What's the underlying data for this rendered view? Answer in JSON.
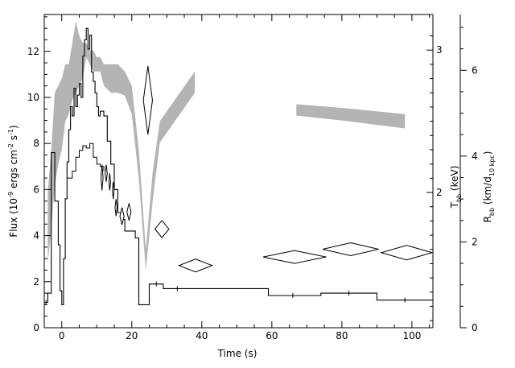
{
  "chart_data": {
    "type": "line",
    "xlabel": "Time (s)",
    "x_ticks": [
      0,
      20,
      40,
      60,
      80,
      100
    ],
    "xlim": [
      -5,
      106
    ],
    "axes": {
      "left": {
        "label_parts": [
          "Flux (10",
          "-9",
          " ergs cm",
          "-2",
          " s",
          "-1",
          ")"
        ],
        "ticks": [
          0,
          2,
          4,
          6,
          8,
          10,
          12
        ],
        "ylim": [
          0,
          13.6
        ]
      },
      "right_inner": {
        "label_parts": [
          "T",
          "bb",
          " (keV)"
        ],
        "ticks": [
          2,
          3
        ],
        "ylim": [
          1.05,
          3.25
        ]
      },
      "right_outer": {
        "label_parts": [
          "R",
          "bb",
          " (km/d",
          "10 kpc",
          ")"
        ],
        "ticks": [
          0,
          2,
          4,
          6
        ],
        "ylim": [
          0,
          7.3
        ]
      }
    },
    "series": [
      {
        "kind": "flux-histogram",
        "color": "#000000",
        "points": [
          [
            -5,
            1.1
          ],
          [
            -4,
            1.5
          ],
          [
            -3,
            7.6
          ],
          [
            -2,
            5.5
          ],
          [
            -1,
            3.6
          ],
          [
            -0.5,
            1.6
          ],
          [
            0,
            1.0
          ],
          [
            0.5,
            3.0
          ],
          [
            1,
            5.6
          ],
          [
            1.5,
            7.2
          ],
          [
            2,
            8.6
          ],
          [
            2.5,
            9.6
          ],
          [
            3,
            9.2
          ],
          [
            3.5,
            10.4
          ],
          [
            4,
            9.6
          ],
          [
            4.5,
            10.1
          ],
          [
            5,
            10.6
          ],
          [
            5.5,
            10.0
          ],
          [
            6,
            11.8
          ],
          [
            6.5,
            12.5
          ],
          [
            7,
            13.0
          ],
          [
            7.5,
            12.1
          ],
          [
            8,
            12.7
          ],
          [
            8.5,
            11.1
          ],
          [
            9,
            10.7
          ],
          [
            9.5,
            10.2
          ],
          [
            10,
            9.6
          ],
          [
            10.5,
            9.2
          ],
          [
            11,
            9.4
          ],
          [
            12,
            9.2
          ],
          [
            13,
            8.1
          ],
          [
            14,
            7.1
          ],
          [
            15,
            6.0
          ],
          [
            16,
            5.0
          ],
          [
            17,
            4.7
          ],
          [
            18,
            4.2
          ],
          [
            20,
            4.2
          ],
          [
            21,
            3.9
          ],
          [
            22,
            1.0
          ],
          [
            25,
            1.9
          ],
          [
            29,
            1.7
          ],
          [
            42,
            1.7
          ],
          [
            59,
            1.4
          ],
          [
            74,
            1.5
          ],
          [
            90,
            1.2
          ],
          [
            106,
            1.2
          ]
        ],
        "lower_envelope": [
          [
            1.5,
            6.5
          ],
          [
            3,
            6.8
          ],
          [
            4,
            7.4
          ],
          [
            5,
            7.7
          ],
          [
            6,
            7.9
          ],
          [
            7,
            7.8
          ],
          [
            8,
            8.0
          ],
          [
            9,
            7.4
          ],
          [
            10,
            7.1
          ],
          [
            11,
            7.0
          ],
          [
            12,
            6.8
          ]
        ]
      },
      {
        "kind": "kT-band",
        "axis": "right_inner",
        "color": "#b4b4b4",
        "segments": [
          [
            [
              -4,
              1.5,
              2.0
            ],
            [
              -3,
              1.75,
              2.3
            ],
            [
              -2,
              2.05,
              2.7
            ],
            [
              -1,
              2.2,
              2.75
            ],
            [
              0,
              2.3,
              2.8
            ],
            [
              1,
              2.5,
              2.9
            ],
            [
              2,
              2.55,
              2.9
            ],
            [
              3,
              2.65,
              3.05
            ],
            [
              4,
              2.7,
              3.2
            ],
            [
              5,
              2.75,
              3.1
            ],
            [
              6,
              2.8,
              3.05
            ],
            [
              7,
              2.95,
              3.05
            ],
            [
              8,
              2.9,
              3.0
            ],
            [
              9,
              2.85,
              3.0
            ],
            [
              10,
              2.85,
              2.95
            ],
            [
              11,
              2.85,
              2.95
            ],
            [
              12,
              2.75,
              2.9
            ],
            [
              14,
              2.7,
              2.9
            ],
            [
              16,
              2.7,
              2.9
            ],
            [
              18,
              2.68,
              2.85
            ],
            [
              20,
              2.55,
              2.75
            ],
            [
              22,
              2.1,
              2.3
            ],
            [
              24,
              1.45,
              1.6
            ],
            [
              26,
              1.95,
              2.15
            ],
            [
              28,
              2.35,
              2.5
            ]
          ],
          [
            [
              28,
              2.35,
              2.5
            ],
            [
              38,
              2.7,
              2.85
            ]
          ],
          [
            [
              67,
              2.54,
              2.62
            ],
            [
              82,
              2.5,
              2.59
            ],
            [
              98,
              2.45,
              2.55
            ]
          ]
        ]
      },
      {
        "kind": "radius-diamonds",
        "axis": "right_outer",
        "color": "#000000",
        "points": [
          [
            11.5,
            3.5,
            0.6,
            0.3
          ],
          [
            12.7,
            3.6,
            0.6,
            0.2
          ],
          [
            13.7,
            3.4,
            0.5,
            0.2
          ],
          [
            14.7,
            3.2,
            0.5,
            0.2
          ],
          [
            15.5,
            2.8,
            0.6,
            0.2
          ],
          [
            17.2,
            2.6,
            1.2,
            0.2
          ],
          [
            19.2,
            2.7,
            1.2,
            0.2
          ],
          [
            24.6,
            5.3,
            2.6,
            0.8
          ],
          [
            28.6,
            2.3,
            4.0,
            0.2
          ],
          [
            38.2,
            1.45,
            9.5,
            0.15
          ],
          [
            66.5,
            1.65,
            18,
            0.15
          ],
          [
            82.5,
            1.83,
            16,
            0.15
          ],
          [
            98.5,
            1.75,
            14.5,
            0.17
          ]
        ]
      }
    ]
  }
}
